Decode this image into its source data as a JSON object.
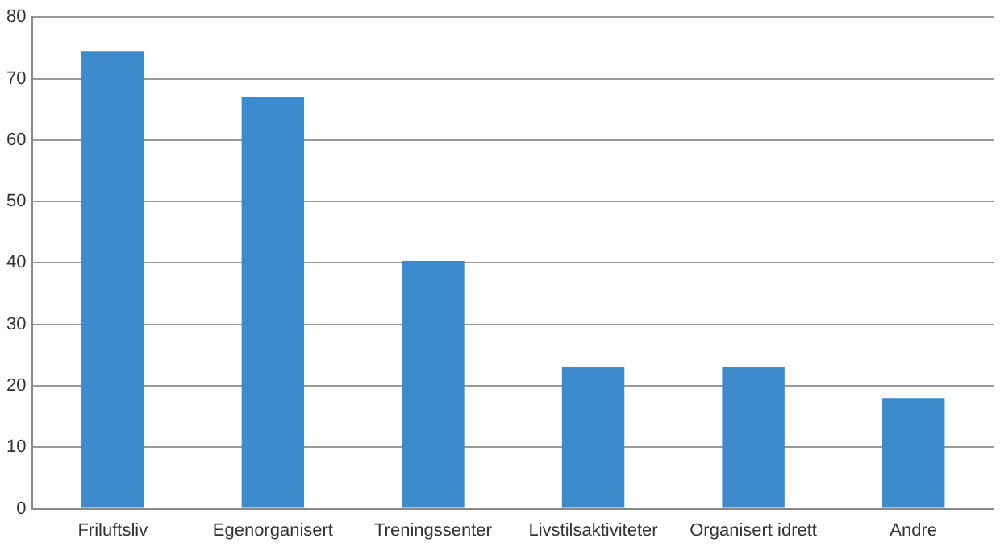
{
  "chart_data": {
    "type": "bar",
    "categories": [
      "Friluftsliv",
      "Egenorganisert",
      "Treningssenter",
      "Livstilsaktiviteter",
      "Organisert idrett",
      "Andre"
    ],
    "values": [
      74.5,
      67,
      40.3,
      23,
      23,
      18
    ],
    "color": "#3d8acd",
    "ylim": [
      0,
      80
    ],
    "yticks": [
      0,
      10,
      20,
      30,
      40,
      50,
      60,
      70,
      80
    ],
    "grid": "y",
    "legend": false
  }
}
